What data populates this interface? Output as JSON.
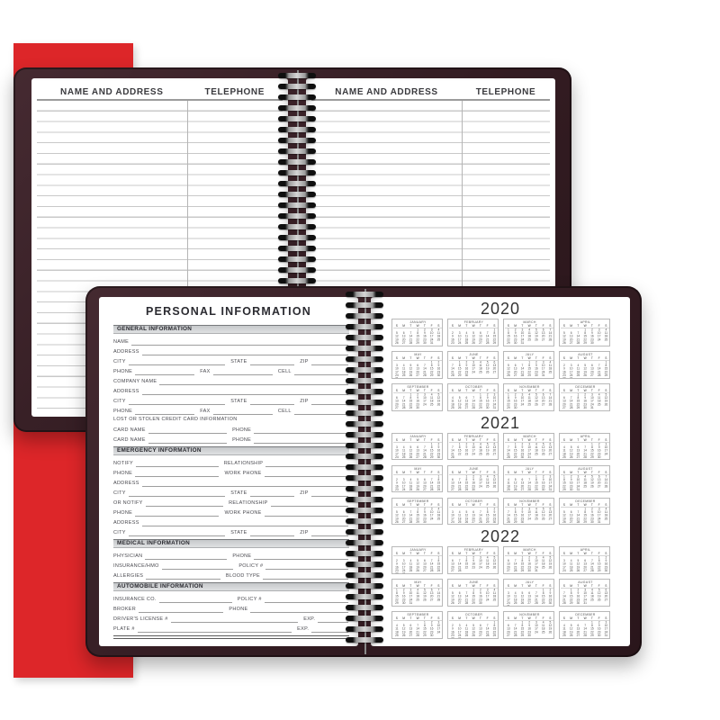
{
  "colors": {
    "accent_red": "#dd2629",
    "cover_maroon": "#372126",
    "page_white": "#ffffff",
    "rule_gray": "#c9c9c9"
  },
  "address_spread": {
    "left": {
      "col1": "NAME AND ADDRESS",
      "col2": "TELEPHONE"
    },
    "right": {
      "col1": "NAME AND ADDRESS",
      "col2": "TELEPHONE"
    }
  },
  "personal_page": {
    "title": "PERSONAL INFORMATION",
    "sections": [
      {
        "header": "GENERAL INFORMATION",
        "rows": [
          [
            {
              "label": "NAME",
              "flex": 1
            }
          ],
          [
            {
              "label": "ADDRESS",
              "flex": 1
            }
          ],
          [
            {
              "label": "CITY",
              "flex": 2.6
            },
            {
              "label": "STATE",
              "flex": 1.2
            },
            {
              "label": "ZIP",
              "flex": 1
            }
          ],
          [
            {
              "label": "PHONE",
              "flex": 1.1
            },
            {
              "label": "FAX",
              "flex": 1.1
            },
            {
              "label": "CELL",
              "flex": 1
            }
          ],
          [
            {
              "label": "COMPANY NAME",
              "flex": 1
            }
          ],
          [
            {
              "label": "ADDRESS",
              "flex": 1
            }
          ],
          [
            {
              "label": "CITY",
              "flex": 2.6
            },
            {
              "label": "STATE",
              "flex": 1.2
            },
            {
              "label": "ZIP",
              "flex": 1
            }
          ],
          [
            {
              "label": "PHONE",
              "flex": 1.1
            },
            {
              "label": "FAX",
              "flex": 1.1
            },
            {
              "label": "CELL",
              "flex": 1
            }
          ],
          [
            {
              "label": "LOST OR STOLEN CREDIT CARD INFORMATION",
              "note": true
            }
          ],
          [
            {
              "label": "CARD NAME",
              "flex": 1
            },
            {
              "label": "PHONE",
              "flex": 1.2
            }
          ],
          [
            {
              "label": "CARD NAME",
              "flex": 1
            },
            {
              "label": "PHONE",
              "flex": 1.2
            }
          ]
        ]
      },
      {
        "header": "EMERGENCY INFORMATION",
        "rows": [
          [
            {
              "label": "NOTIFY",
              "flex": 1
            },
            {
              "label": "RELATIONSHIP",
              "flex": 1
            }
          ],
          [
            {
              "label": "PHONE",
              "flex": 1
            },
            {
              "label": "WORK PHONE",
              "flex": 1
            }
          ],
          [
            {
              "label": "ADDRESS",
              "flex": 1
            }
          ],
          [
            {
              "label": "CITY",
              "flex": 2.6
            },
            {
              "label": "STATE",
              "flex": 1.2
            },
            {
              "label": "ZIP",
              "flex": 1
            }
          ],
          [
            {
              "label": "OR NOTIFY",
              "flex": 1
            },
            {
              "label": "RELATIONSHIP",
              "flex": 1
            }
          ],
          [
            {
              "label": "PHONE",
              "flex": 1
            },
            {
              "label": "WORK PHONE",
              "flex": 1
            }
          ],
          [
            {
              "label": "ADDRESS",
              "flex": 1
            }
          ],
          [
            {
              "label": "CITY",
              "flex": 2.6
            },
            {
              "label": "STATE",
              "flex": 1.2
            },
            {
              "label": "ZIP",
              "flex": 1
            }
          ]
        ]
      },
      {
        "header": "MEDICAL INFORMATION",
        "rows": [
          [
            {
              "label": "PHYSICIAN",
              "flex": 1
            },
            {
              "label": "PHONE",
              "flex": 1.15
            }
          ],
          [
            {
              "label": "INSURANCE/HMO",
              "flex": 1
            },
            {
              "label": "POLICY #",
              "flex": 1.15
            }
          ],
          [
            {
              "label": "ALLERGIES",
              "flex": 1
            },
            {
              "label": "BLOOD TYPE",
              "flex": 1.15
            }
          ]
        ]
      },
      {
        "header": "AUTOMOBILE INFORMATION",
        "rows": [
          [
            {
              "label": "INSURANCE CO.",
              "flex": 1
            },
            {
              "label": "POLICY #",
              "flex": 1.15
            }
          ],
          [
            {
              "label": "BROKER",
              "flex": 1
            },
            {
              "label": "PHONE",
              "flex": 1.15
            }
          ],
          [
            {
              "label": "DRIVER'S LICENSE #",
              "flex": 4.2
            },
            {
              "label": "EXP.",
              "flex": 1
            }
          ],
          [
            {
              "label": "PLATE #",
              "flex": 4.2
            },
            {
              "label": "EXP.",
              "flex": 1
            }
          ]
        ]
      }
    ]
  },
  "calendar_page": {
    "weekdays": [
      "S",
      "M",
      "T",
      "W",
      "T",
      "F",
      "S"
    ],
    "years": [
      {
        "year": "2020",
        "months": [
          [
            "JANUARY",
            3,
            31
          ],
          [
            "FEBRUARY",
            6,
            29
          ],
          [
            "MARCH",
            0,
            31
          ],
          [
            "APRIL",
            3,
            30
          ],
          [
            "MAY",
            5,
            31
          ],
          [
            "JUNE",
            1,
            30
          ],
          [
            "JULY",
            3,
            31
          ],
          [
            "AUGUST",
            6,
            31
          ],
          [
            "SEPTEMBER",
            2,
            30
          ],
          [
            "OCTOBER",
            4,
            31
          ],
          [
            "NOVEMBER",
            0,
            30
          ],
          [
            "DECEMBER",
            2,
            31
          ]
        ]
      },
      {
        "year": "2021",
        "months": [
          [
            "JANUARY",
            5,
            31
          ],
          [
            "FEBRUARY",
            1,
            28
          ],
          [
            "MARCH",
            1,
            31
          ],
          [
            "APRIL",
            4,
            30
          ],
          [
            "MAY",
            6,
            31
          ],
          [
            "JUNE",
            2,
            30
          ],
          [
            "JULY",
            4,
            31
          ],
          [
            "AUGUST",
            0,
            31
          ],
          [
            "SEPTEMBER",
            3,
            30
          ],
          [
            "OCTOBER",
            5,
            31
          ],
          [
            "NOVEMBER",
            1,
            30
          ],
          [
            "DECEMBER",
            3,
            31
          ]
        ]
      },
      {
        "year": "2022",
        "months": [
          [
            "JANUARY",
            6,
            31
          ],
          [
            "FEBRUARY",
            2,
            28
          ],
          [
            "MARCH",
            2,
            31
          ],
          [
            "APRIL",
            5,
            30
          ],
          [
            "MAY",
            0,
            31
          ],
          [
            "JUNE",
            3,
            30
          ],
          [
            "JULY",
            5,
            31
          ],
          [
            "AUGUST",
            1,
            31
          ],
          [
            "SEPTEMBER",
            4,
            30
          ],
          [
            "OCTOBER",
            6,
            31
          ],
          [
            "NOVEMBER",
            2,
            30
          ],
          [
            "DECEMBER",
            4,
            31
          ]
        ]
      }
    ]
  }
}
